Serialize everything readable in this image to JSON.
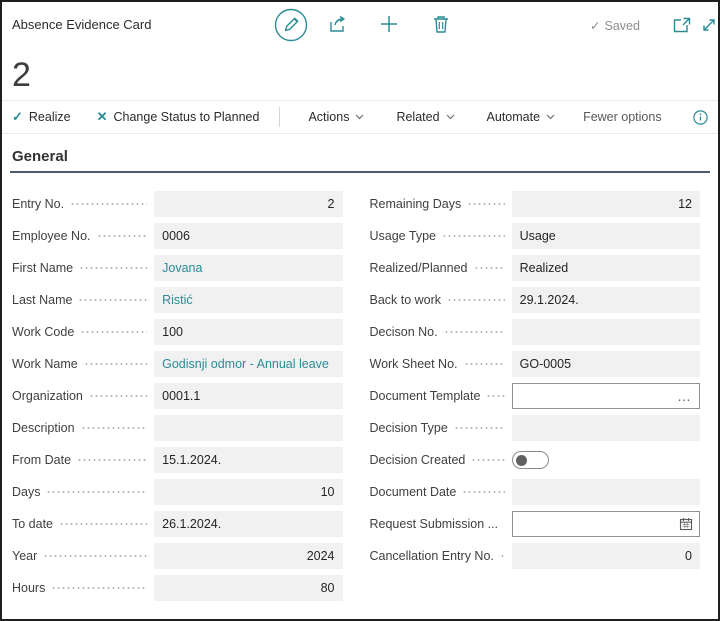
{
  "colors": {
    "accent_teal": "#2a8c96",
    "section_rule": "#4a5b6e",
    "field_background": "#f1f1f2",
    "saved_text": "#8f8f8f"
  },
  "header": {
    "title": "Absence Evidence Card",
    "record_id": "2",
    "saved_label": "Saved",
    "saved_check": "✓"
  },
  "action_bar": {
    "primary_actions": [
      {
        "id": "realize",
        "label": "Realize",
        "glyph": "✓"
      },
      {
        "id": "change-status-to-planned",
        "label": "Change Status to Planned",
        "glyph": "✕"
      }
    ],
    "menus": [
      {
        "id": "actions",
        "label": "Actions"
      },
      {
        "id": "related",
        "label": "Related"
      },
      {
        "id": "automate",
        "label": "Automate"
      }
    ],
    "fewer_options": "Fewer options"
  },
  "section": {
    "title": "General"
  },
  "form": {
    "ellipsis_glyph": "…",
    "left": [
      {
        "id": "entry-no",
        "label": "Entry No.",
        "value": "2",
        "align": "right"
      },
      {
        "id": "employee-no",
        "label": "Employee No.",
        "value": "0006"
      },
      {
        "id": "first-name",
        "label": "First Name",
        "value": "Jovana",
        "link": true
      },
      {
        "id": "last-name",
        "label": "Last Name",
        "value": "Ristić",
        "link": true
      },
      {
        "id": "work-code",
        "label": "Work Code",
        "value": "100"
      },
      {
        "id": "work-name",
        "label": "Work Name",
        "value": "Godisnji odmor - Annual leave",
        "link": true
      },
      {
        "id": "organization",
        "label": "Organization",
        "value": "0001.1"
      },
      {
        "id": "description",
        "label": "Description",
        "value": ""
      },
      {
        "id": "from-date",
        "label": "From Date",
        "value": "15.1.2024."
      },
      {
        "id": "days",
        "label": "Days",
        "value": "10",
        "align": "right"
      },
      {
        "id": "to-date",
        "label": "To date",
        "value": "26.1.2024."
      },
      {
        "id": "year",
        "label": "Year",
        "value": "2024",
        "align": "right"
      },
      {
        "id": "hours",
        "label": "Hours",
        "value": "80",
        "align": "right"
      }
    ],
    "right": [
      {
        "id": "remaining-days",
        "label": "Remaining Days",
        "value": "12",
        "align": "right"
      },
      {
        "id": "usage-type",
        "label": "Usage Type",
        "value": "Usage"
      },
      {
        "id": "realized-planned",
        "label": "Realized/Planned",
        "value": "Realized"
      },
      {
        "id": "back-to-work",
        "label": "Back to work",
        "value": "29.1.2024."
      },
      {
        "id": "decison-no",
        "label": "Decison No.",
        "value": ""
      },
      {
        "id": "work-sheet-no",
        "label": "Work Sheet No.",
        "value": "GO-0005"
      },
      {
        "id": "document-template",
        "label": "Document Template",
        "value": "",
        "control": "assist"
      },
      {
        "id": "decision-type",
        "label": "Decision Type",
        "value": ""
      },
      {
        "id": "decision-created",
        "label": "Decision Created",
        "control": "toggle",
        "state": "off"
      },
      {
        "id": "document-date",
        "label": "Document Date",
        "value": ""
      },
      {
        "id": "request-submission",
        "label": "Request Submission ...",
        "value": "",
        "control": "date"
      },
      {
        "id": "cancellation-entry-no",
        "label": "Cancellation Entry No.",
        "value": "0",
        "align": "right"
      }
    ]
  }
}
